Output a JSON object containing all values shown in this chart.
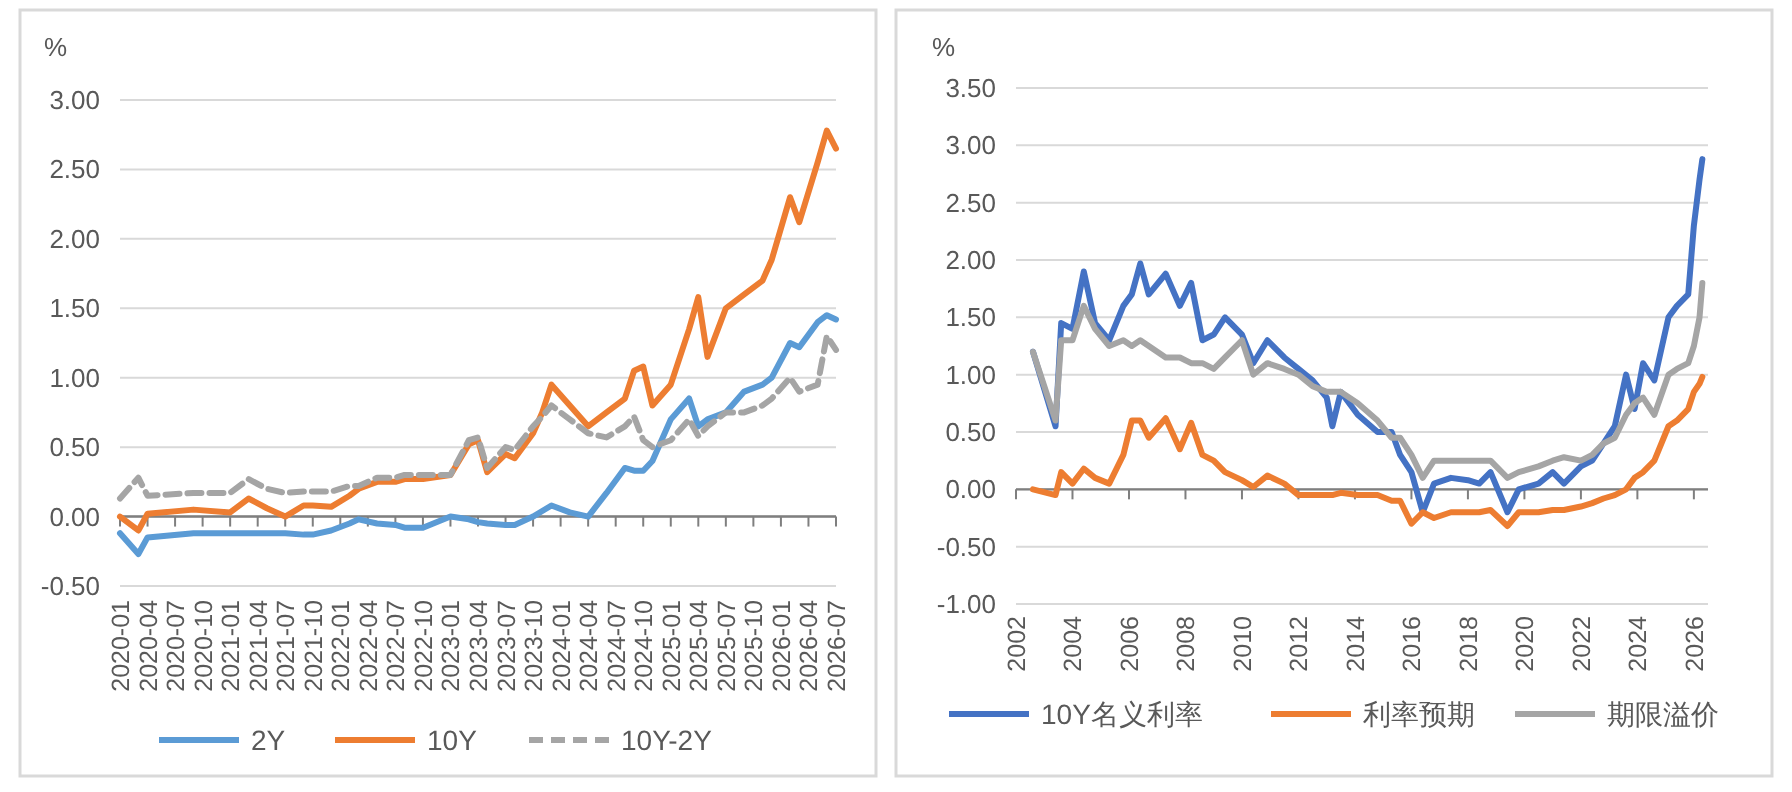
{
  "chart_data": [
    {
      "type": "line",
      "ylabel": "%",
      "x": [
        "2020-01",
        "2020-03",
        "2020-04",
        "2020-09",
        "2021-01",
        "2021-03",
        "2021-05",
        "2021-07",
        "2021-09",
        "2021-10",
        "2021-12",
        "2022-02",
        "2022-03",
        "2022-05",
        "2022-07",
        "2022-08",
        "2022-10",
        "2023-01",
        "2023-03",
        "2023-04",
        "2023-05",
        "2023-07",
        "2023-08",
        "2023-10",
        "2023-11",
        "2023-12",
        "2024-02",
        "2024-04",
        "2024-06",
        "2024-08",
        "2024-09",
        "2024-10",
        "2024-11",
        "2025-01",
        "2025-03",
        "2025-04",
        "2025-05",
        "2025-07",
        "2025-09",
        "2025-11",
        "2025-12",
        "2026-02",
        "2026-03",
        "2026-05",
        "2026-06",
        "2026-07"
      ],
      "series": [
        {
          "name": "2Y",
          "color": "#5b9bd5",
          "values": [
            -0.12,
            -0.27,
            -0.15,
            -0.12,
            -0.12,
            -0.12,
            -0.12,
            -0.12,
            -0.13,
            -0.13,
            -0.1,
            -0.05,
            -0.02,
            -0.05,
            -0.06,
            -0.08,
            -0.08,
            0.0,
            -0.02,
            -0.04,
            -0.05,
            -0.06,
            -0.06,
            0.0,
            0.04,
            0.08,
            0.03,
            0.0,
            0.17,
            0.35,
            0.33,
            0.33,
            0.4,
            0.7,
            0.85,
            0.65,
            0.7,
            0.75,
            0.9,
            0.95,
            1.0,
            1.25,
            1.22,
            1.4,
            1.45,
            1.42
          ]
        },
        {
          "name": "10Y",
          "color": "#ed7d31",
          "values": [
            0.0,
            -0.1,
            0.02,
            0.05,
            0.03,
            0.13,
            0.06,
            0.0,
            0.08,
            0.08,
            0.07,
            0.15,
            0.2,
            0.25,
            0.25,
            0.27,
            0.27,
            0.3,
            0.52,
            0.55,
            0.32,
            0.45,
            0.42,
            0.6,
            0.75,
            0.95,
            0.8,
            0.65,
            0.75,
            0.85,
            1.05,
            1.08,
            0.8,
            0.95,
            1.35,
            1.58,
            1.15,
            1.5,
            1.6,
            1.7,
            1.85,
            2.3,
            2.12,
            2.55,
            2.78,
            2.65
          ]
        },
        {
          "name": "10Y-2Y",
          "color": "#a5a5a5",
          "line_style": "dashed",
          "values": [
            0.13,
            0.28,
            0.15,
            0.17,
            0.17,
            0.27,
            0.2,
            0.17,
            0.18,
            0.18,
            0.18,
            0.22,
            0.22,
            0.28,
            0.28,
            0.3,
            0.3,
            0.3,
            0.55,
            0.57,
            0.35,
            0.5,
            0.48,
            0.65,
            0.72,
            0.8,
            0.7,
            0.6,
            0.57,
            0.65,
            0.72,
            0.55,
            0.5,
            0.55,
            0.7,
            0.58,
            0.65,
            0.75,
            0.75,
            0.8,
            0.85,
            1.0,
            0.9,
            0.95,
            1.3,
            1.2
          ]
        }
      ],
      "xlim": [
        "2020-01",
        "2026-07"
      ],
      "xticks": [
        "2020-01",
        "2020-04",
        "2020-07",
        "2020-10",
        "2021-01",
        "2021-04",
        "2021-07",
        "2021-10",
        "2022-01",
        "2022-04",
        "2022-07",
        "2022-10",
        "2023-01",
        "2023-04",
        "2023-07",
        "2023-10",
        "2024-01",
        "2024-04",
        "2024-07",
        "2024-10",
        "2025-01",
        "2025-04",
        "2025-07",
        "2025-10",
        "2026-01",
        "2026-04",
        "2026-07"
      ],
      "ylim": [
        -0.5,
        3.0
      ],
      "yticks": [
        {
          "value": -0.5,
          "label": "-0.50"
        },
        {
          "value": 0,
          "label": "0.00"
        },
        {
          "value": 0.5,
          "label": "0.50"
        },
        {
          "value": 1.0,
          "label": "1.00"
        },
        {
          "value": 1.5,
          "label": "1.50"
        },
        {
          "value": 2.0,
          "label": "2.00"
        },
        {
          "value": 2.5,
          "label": "2.50"
        },
        {
          "value": 3.0,
          "label": "3.00"
        }
      ],
      "grid": "y",
      "legend": "bottom"
    },
    {
      "type": "line",
      "ylabel": "%",
      "x": [
        2002.6,
        2003.4,
        2003.6,
        2004.0,
        2004.4,
        2004.8,
        2005.3,
        2005.8,
        2006.1,
        2006.4,
        2006.7,
        2007.3,
        2007.8,
        2008.2,
        2008.6,
        2009.0,
        2009.4,
        2010.0,
        2010.4,
        2010.9,
        2011.5,
        2012.0,
        2012.5,
        2013.0,
        2013.2,
        2013.5,
        2014.1,
        2014.8,
        2015.3,
        2015.6,
        2016.0,
        2016.4,
        2016.8,
        2017.4,
        2018.0,
        2018.4,
        2018.8,
        2019.4,
        2019.8,
        2020.5,
        2021.0,
        2021.4,
        2022.0,
        2022.4,
        2022.8,
        2023.2,
        2023.6,
        2023.9,
        2024.2,
        2024.6,
        2025.1,
        2025.4,
        2025.8,
        2026.0,
        2026.2,
        2026.3
      ],
      "series": [
        {
          "name": "10Y名义利率",
          "color": "#4472c4",
          "values": [
            1.2,
            0.55,
            1.45,
            1.4,
            1.9,
            1.45,
            1.3,
            1.6,
            1.7,
            1.97,
            1.7,
            1.88,
            1.6,
            1.8,
            1.3,
            1.35,
            1.5,
            1.35,
            1.1,
            1.3,
            1.15,
            1.05,
            0.95,
            0.8,
            0.55,
            0.85,
            0.65,
            0.5,
            0.5,
            0.3,
            0.15,
            -0.2,
            0.05,
            0.1,
            0.08,
            0.05,
            0.15,
            -0.2,
            0.0,
            0.05,
            0.15,
            0.05,
            0.2,
            0.25,
            0.4,
            0.55,
            1.0,
            0.7,
            1.1,
            0.95,
            1.5,
            1.6,
            1.7,
            2.3,
            2.7,
            2.88
          ]
        },
        {
          "name": "利率预期",
          "color": "#ed7d31",
          "values": [
            0.0,
            -0.05,
            0.15,
            0.05,
            0.18,
            0.1,
            0.05,
            0.3,
            0.6,
            0.6,
            0.45,
            0.62,
            0.35,
            0.58,
            0.3,
            0.25,
            0.15,
            0.08,
            0.02,
            0.12,
            0.05,
            -0.05,
            -0.05,
            -0.05,
            -0.05,
            -0.03,
            -0.05,
            -0.05,
            -0.1,
            -0.1,
            -0.3,
            -0.2,
            -0.25,
            -0.2,
            -0.2,
            -0.2,
            -0.18,
            -0.32,
            -0.2,
            -0.2,
            -0.18,
            -0.18,
            -0.15,
            -0.12,
            -0.08,
            -0.05,
            0.0,
            0.1,
            0.15,
            0.25,
            0.55,
            0.6,
            0.7,
            0.85,
            0.92,
            0.98
          ]
        },
        {
          "name": "期限溢价",
          "color": "#a5a5a5",
          "values": [
            1.2,
            0.6,
            1.3,
            1.3,
            1.6,
            1.4,
            1.25,
            1.3,
            1.25,
            1.3,
            1.25,
            1.15,
            1.15,
            1.1,
            1.1,
            1.05,
            1.15,
            1.3,
            1.0,
            1.1,
            1.05,
            1.0,
            0.9,
            0.85,
            0.85,
            0.85,
            0.75,
            0.6,
            0.45,
            0.45,
            0.3,
            0.1,
            0.25,
            0.25,
            0.25,
            0.25,
            0.25,
            0.1,
            0.15,
            0.2,
            0.25,
            0.28,
            0.25,
            0.3,
            0.4,
            0.45,
            0.65,
            0.75,
            0.8,
            0.65,
            1.0,
            1.05,
            1.1,
            1.25,
            1.5,
            1.8
          ]
        }
      ],
      "xlim": [
        2002,
        2026.5
      ],
      "xticks": [
        2002,
        2004,
        2006,
        2008,
        2010,
        2012,
        2014,
        2016,
        2018,
        2020,
        2022,
        2024,
        2026
      ],
      "ylim": [
        -1.0,
        3.5
      ],
      "yticks": [
        {
          "value": -1.0,
          "label": "-1.00"
        },
        {
          "value": -0.5,
          "label": "-0.50"
        },
        {
          "value": 0,
          "label": "0.00"
        },
        {
          "value": 0.5,
          "label": "0.50"
        },
        {
          "value": 1.0,
          "label": "1.00"
        },
        {
          "value": 1.5,
          "label": "1.50"
        },
        {
          "value": 2.0,
          "label": "2.00"
        },
        {
          "value": 2.5,
          "label": "2.50"
        },
        {
          "value": 3.0,
          "label": "3.00"
        },
        {
          "value": 3.5,
          "label": "3.50"
        }
      ],
      "grid": "y",
      "legend": "bottom"
    }
  ]
}
